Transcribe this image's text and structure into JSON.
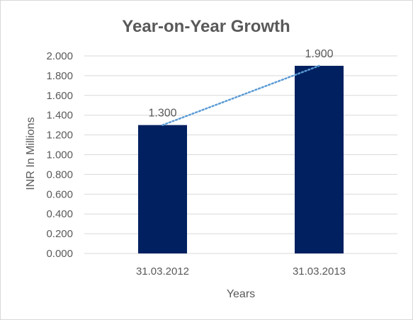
{
  "chart_data": {
    "type": "bar",
    "title": "Year-on-Year Growth",
    "categories": [
      "31.03.2012",
      "31.03.2013"
    ],
    "values": [
      1.3,
      1.9
    ],
    "value_labels": [
      "1.300",
      "1.900"
    ],
    "xlabel": "Years",
    "ylabel": "INR In Millions",
    "ylim": [
      0,
      2
    ],
    "y_ticks": [
      0,
      0.2,
      0.4,
      0.6,
      0.8,
      1.0,
      1.2,
      1.4,
      1.6,
      1.8,
      2.0
    ],
    "y_tick_labels": [
      "0.000",
      "0.200",
      "0.400",
      "0.600",
      "0.800",
      "1.000",
      "1.200",
      "1.400",
      "1.600",
      "1.800",
      "2.000"
    ],
    "grid": true,
    "legend": "none",
    "trendline": "linear dotted",
    "colors": {
      "bar": "#002060",
      "trendline": "#5B9BD5",
      "grid": "#d9d9d9",
      "text": "#595959"
    }
  }
}
